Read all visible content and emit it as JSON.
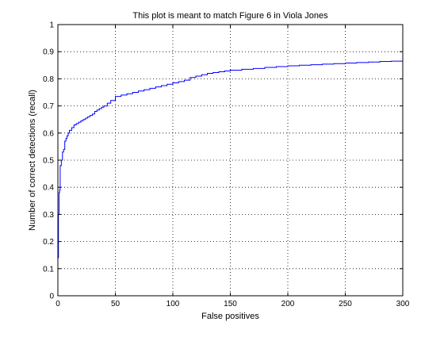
{
  "chart_data": {
    "type": "line",
    "title": "This plot is meant to match Figure 6 in Viola Jones",
    "xlabel": "False positives",
    "ylabel": "Number of correct detections (recall)",
    "xlim": [
      0,
      300
    ],
    "ylim": [
      0,
      1
    ],
    "xticks": [
      0,
      50,
      100,
      150,
      200,
      250,
      300
    ],
    "yticks": [
      0,
      0.1,
      0.2,
      0.3,
      0.4,
      0.5,
      0.6,
      0.7,
      0.8,
      0.9,
      1
    ],
    "xtick_labels": [
      "0",
      "50",
      "100",
      "150",
      "200",
      "250",
      "300"
    ],
    "ytick_labels": [
      "0",
      "0.1",
      "0.2",
      "0.3",
      "0.4",
      "0.5",
      "0.6",
      "0.7",
      "0.8",
      "0.9",
      "1"
    ],
    "grid": true,
    "grid_style": "dotted",
    "line_color": "#0000ff",
    "series": [
      {
        "step": true,
        "x": [
          0,
          0.5,
          1,
          1.5,
          2,
          3,
          4,
          5,
          6,
          7,
          8,
          9,
          10,
          12,
          14,
          16,
          18,
          20,
          22,
          24,
          26,
          28,
          30,
          32,
          34,
          36,
          38,
          40,
          43,
          46,
          50,
          55,
          60,
          65,
          70,
          75,
          80,
          85,
          90,
          95,
          100,
          105,
          110,
          115,
          120,
          125,
          130,
          135,
          140,
          145,
          150,
          160,
          170,
          180,
          190,
          200,
          210,
          220,
          230,
          240,
          250,
          260,
          270,
          280,
          290,
          300
        ],
        "y": [
          0.14,
          0.3,
          0.38,
          0.39,
          0.48,
          0.5,
          0.53,
          0.54,
          0.57,
          0.58,
          0.59,
          0.6,
          0.61,
          0.62,
          0.63,
          0.635,
          0.64,
          0.645,
          0.65,
          0.655,
          0.66,
          0.665,
          0.67,
          0.68,
          0.685,
          0.69,
          0.695,
          0.7,
          0.71,
          0.72,
          0.735,
          0.74,
          0.745,
          0.75,
          0.755,
          0.76,
          0.765,
          0.77,
          0.775,
          0.78,
          0.785,
          0.79,
          0.795,
          0.805,
          0.81,
          0.815,
          0.82,
          0.823,
          0.826,
          0.829,
          0.832,
          0.835,
          0.838,
          0.842,
          0.845,
          0.848,
          0.85,
          0.852,
          0.854,
          0.856,
          0.858,
          0.86,
          0.862,
          0.864,
          0.865,
          0.866
        ]
      }
    ]
  }
}
